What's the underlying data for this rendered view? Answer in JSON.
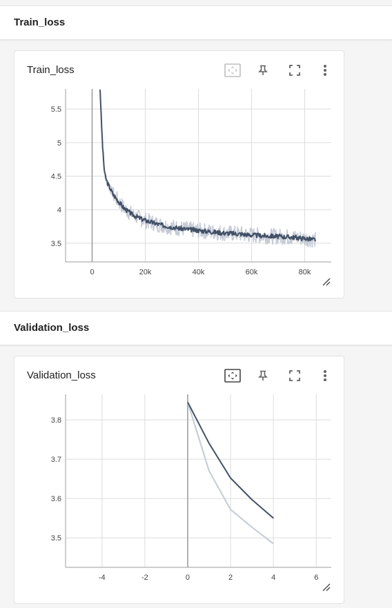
{
  "sections": [
    {
      "header": "Train_loss",
      "card_title": "Train_loss",
      "toolbar": {
        "fit_icon": "fit-domain-icon",
        "pin_icon": "pin-icon",
        "fullscreen_icon": "fullscreen-icon",
        "menu_icon": "more-vert-icon"
      }
    },
    {
      "header": "Validation_loss",
      "card_title": "Validation_loss",
      "toolbar": {
        "fit_icon": "fit-domain-icon",
        "pin_icon": "pin-icon",
        "fullscreen_icon": "fullscreen-icon",
        "menu_icon": "more-vert-icon"
      }
    }
  ],
  "chart_data": [
    {
      "type": "line",
      "title": "Train_loss",
      "xlim": [
        -10000,
        90000
      ],
      "ylim": [
        3.22,
        5.8
      ],
      "x_ticks": [
        0,
        20000,
        40000,
        60000,
        80000
      ],
      "x_tick_labels": [
        "0",
        "20k",
        "40k",
        "60k",
        "80k"
      ],
      "y_ticks": [
        3.5,
        4,
        4.5,
        5,
        5.5
      ],
      "y_tick_labels": [
        "3.5",
        "4",
        "4.5",
        "5",
        "5.5"
      ],
      "grid": true,
      "series": [
        {
          "role": "smoothed",
          "color": "#425066",
          "x": [
            3000,
            3500,
            4000,
            4500,
            5000,
            6000,
            7000,
            8000,
            10000,
            12000,
            15000,
            18000,
            20000,
            25000,
            30000,
            35000,
            40000,
            45000,
            50000,
            55000,
            60000,
            65000,
            70000,
            75000,
            80000,
            84000
          ],
          "y": [
            5.8,
            5.3,
            4.9,
            4.62,
            4.48,
            4.38,
            4.3,
            4.22,
            4.12,
            4.02,
            3.93,
            3.87,
            3.84,
            3.78,
            3.74,
            3.71,
            3.69,
            3.67,
            3.65,
            3.64,
            3.62,
            3.61,
            3.6,
            3.59,
            3.57,
            3.55
          ]
        },
        {
          "role": "raw",
          "color": "#c5cbd6",
          "noise_amplitude": 0.12
        }
      ]
    },
    {
      "type": "line",
      "title": "Validation_loss",
      "xlim": [
        -5.7,
        6.7
      ],
      "ylim": [
        3.425,
        3.865
      ],
      "x_ticks": [
        -4,
        -2,
        0,
        2,
        4,
        6
      ],
      "x_tick_labels": [
        "-4",
        "-2",
        "0",
        "2",
        "4",
        "6"
      ],
      "y_ticks": [
        3.5,
        3.6,
        3.7,
        3.8
      ],
      "y_tick_labels": [
        "3.5",
        "3.6",
        "3.7",
        "3.8"
      ],
      "grid": true,
      "series": [
        {
          "role": "smoothed",
          "color": "#425066",
          "x": [
            0,
            1,
            2,
            3,
            4
          ],
          "y": [
            3.845,
            3.74,
            3.652,
            3.597,
            3.55
          ]
        },
        {
          "role": "raw",
          "color": "#c8ced8",
          "x": [
            0,
            1,
            2,
            3,
            4
          ],
          "y": [
            3.845,
            3.67,
            3.572,
            3.527,
            3.485
          ]
        }
      ]
    }
  ]
}
